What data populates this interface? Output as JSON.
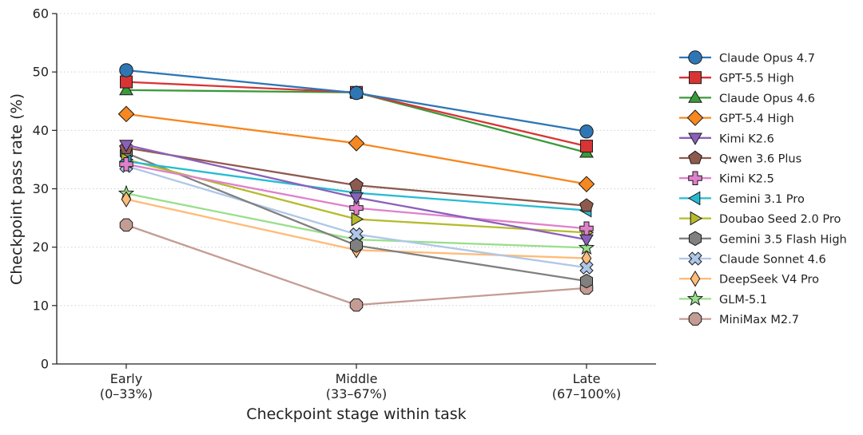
{
  "chart_data": {
    "type": "line",
    "title": "",
    "xlabel": "Checkpoint stage within task",
    "ylabel": "Checkpoint pass rate (%)",
    "ylim": [
      0,
      60
    ],
    "yticks": [
      0,
      10,
      20,
      30,
      40,
      50,
      60
    ],
    "grid": "horizontal dotted",
    "legend_position": "right",
    "categories": [
      [
        "Early",
        "(0–33%)"
      ],
      [
        "Middle",
        "(33–67%)"
      ],
      [
        "Late",
        "(67–100%)"
      ]
    ],
    "series": [
      {
        "name": "Claude Opus 4.7",
        "values": [
          50.3,
          46.4,
          39.8
        ],
        "color": "#2f76b5",
        "marker": "circle"
      },
      {
        "name": "GPT-5.5 High",
        "values": [
          48.3,
          46.5,
          37.3
        ],
        "color": "#d83434",
        "marker": "square"
      },
      {
        "name": "Claude Opus 4.6",
        "values": [
          46.9,
          46.5,
          36.2
        ],
        "color": "#3a9a3a",
        "marker": "triangle-up"
      },
      {
        "name": "GPT-5.4 High",
        "values": [
          42.8,
          37.8,
          30.8
        ],
        "color": "#f7871f",
        "marker": "diamond"
      },
      {
        "name": "Kimi K2.6",
        "values": [
          37.5,
          28.5,
          21.3
        ],
        "color": "#8b60ba",
        "marker": "triangle-down"
      },
      {
        "name": "Qwen 3.6 Plus",
        "values": [
          37.0,
          30.6,
          27.1
        ],
        "color": "#8f5a4e",
        "marker": "pentagon"
      },
      {
        "name": "Kimi K2.5",
        "values": [
          34.2,
          26.7,
          23.2
        ],
        "color": "#e080cc",
        "marker": "plus"
      },
      {
        "name": "Gemini 3.1 Pro",
        "values": [
          34.7,
          29.3,
          26.3
        ],
        "color": "#25bcd3",
        "marker": "triangle-left"
      },
      {
        "name": "Doubao Seed 2.0 Pro",
        "values": [
          35.0,
          24.8,
          22.5
        ],
        "color": "#b5bb2c",
        "marker": "triangle-right"
      },
      {
        "name": "Gemini 3.5 Flash High",
        "values": [
          36.1,
          20.3,
          14.2
        ],
        "color": "#808080",
        "marker": "hexagon"
      },
      {
        "name": "Claude Sonnet 4.6",
        "values": [
          33.9,
          22.2,
          16.5
        ],
        "color": "#aec7e8",
        "marker": "x"
      },
      {
        "name": "DeepSeek V4 Pro",
        "values": [
          28.2,
          19.5,
          18.1
        ],
        "color": "#ffbb78",
        "marker": "thin-diamond"
      },
      {
        "name": "GLM-5.1",
        "values": [
          29.2,
          21.3,
          19.9
        ],
        "color": "#98df8a",
        "marker": "star"
      },
      {
        "name": "MiniMax M2.7",
        "values": [
          23.8,
          10.1,
          13.0
        ],
        "color": "#c49c94",
        "marker": "octagon"
      }
    ]
  }
}
